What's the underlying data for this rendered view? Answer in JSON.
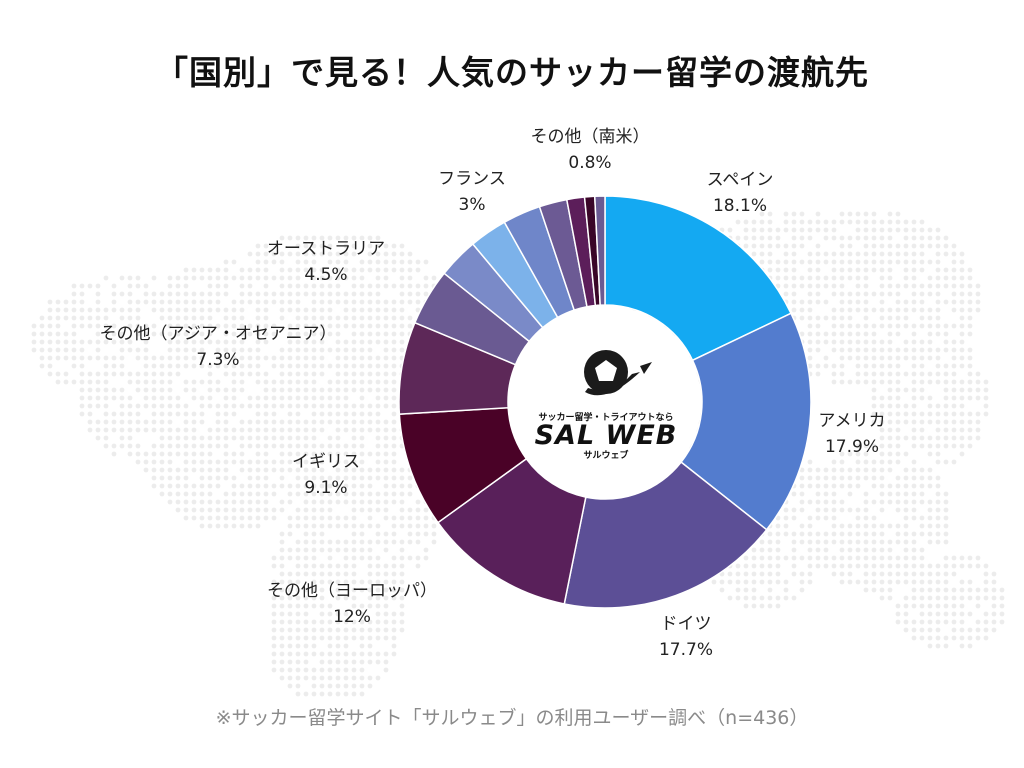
{
  "title": "「国別」で見る！人気のサッカー留学の渡航先",
  "footnote": "※サッカー留学サイト「サルウェブ」の利用ユーザー調べ（n=436）",
  "logo": {
    "tagline": "サッカー留学・トライアウトなら",
    "name": "SAL WEB",
    "kana": "サルウェブ"
  },
  "chart_data": {
    "type": "pie",
    "donut": true,
    "slices": [
      {
        "label": "スペイン",
        "value": 18.1,
        "display": "18.1%",
        "color": "#14a9f2"
      },
      {
        "label": "アメリカ",
        "value": 17.9,
        "display": "17.9%",
        "color": "#537cce"
      },
      {
        "label": "ドイツ",
        "value": 17.7,
        "display": "17.7%",
        "color": "#5c4f96"
      },
      {
        "label": "その他（ヨーロッパ）",
        "value": 12,
        "display": "12%",
        "color": "#59205a"
      },
      {
        "label": "イギリス",
        "value": 9.1,
        "display": "9.1%",
        "color": "#4a0227"
      },
      {
        "label": "その他（アジア・オセアニア）",
        "value": 7.3,
        "display": "7.3%",
        "color": "#5d2858"
      },
      {
        "label": "オーストラリア",
        "value": 4.5,
        "display": "4.5%",
        "color": "#6a5a92"
      },
      {
        "label": "",
        "value": 3.2,
        "display": "",
        "color": "#7a8ac8"
      },
      {
        "label": "",
        "value": 3.0,
        "display": "",
        "color": "#7cb2ea"
      },
      {
        "label": "フランス",
        "value": 3,
        "display": "3%",
        "color": "#6f86c9"
      },
      {
        "label": "",
        "value": 2.2,
        "display": "",
        "color": "#6c5a94"
      },
      {
        "label": "",
        "value": 1.4,
        "display": "",
        "color": "#5c1e5a"
      },
      {
        "label": "",
        "value": 0.8,
        "display": "",
        "color": "#3a0628"
      },
      {
        "label": "その他（南米）",
        "value": 0.8,
        "display": "0.8%",
        "color": "#6a5a92"
      }
    ],
    "legend": "none"
  }
}
